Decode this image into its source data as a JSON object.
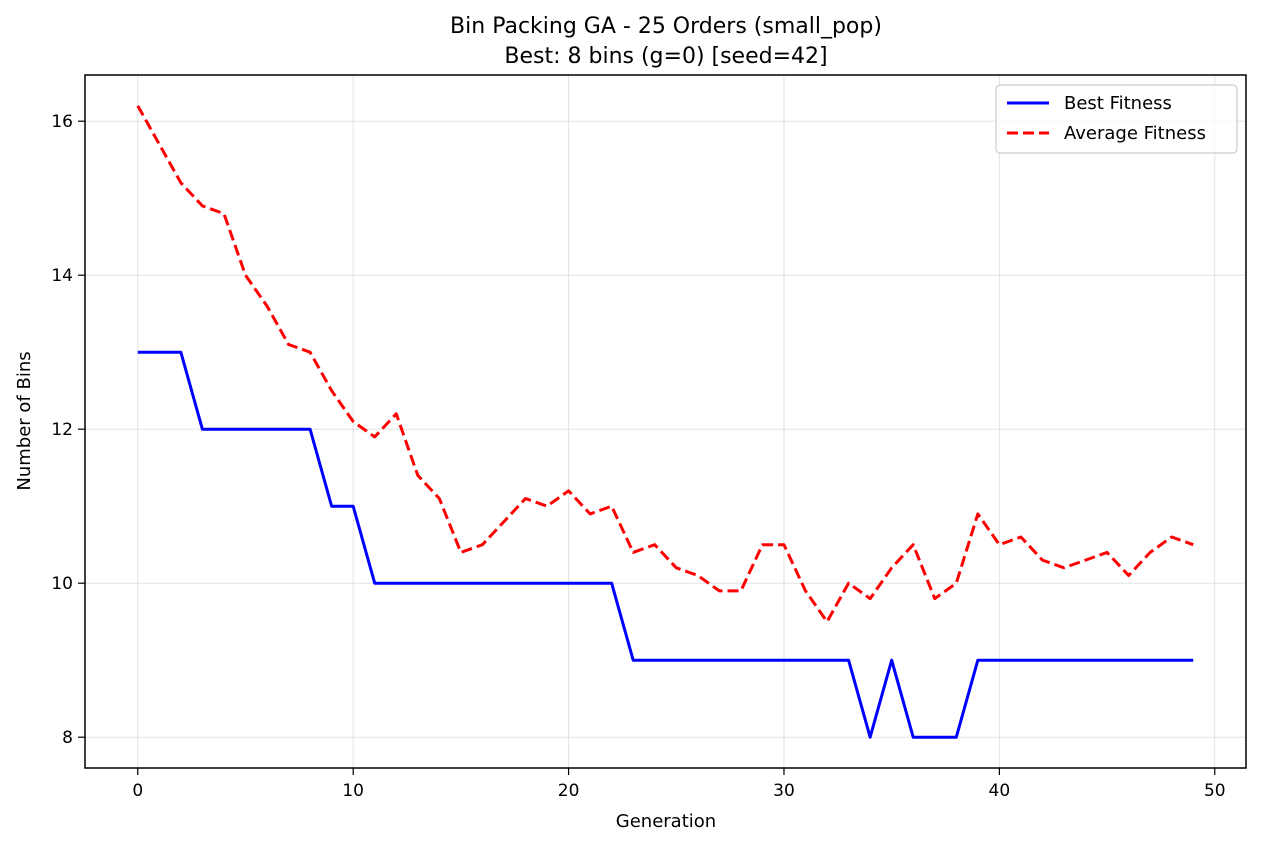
{
  "chart_data": {
    "type": "line",
    "title": "Bin Packing GA - 25 Orders (small_pop)",
    "subtitle": "Best: 8 bins (g=0) [seed=42]",
    "xlabel": "Generation",
    "ylabel": "Number of Bins",
    "xlim": [
      -2.45,
      51.45
    ],
    "ylim": [
      7.6,
      16.6
    ],
    "xticks": [
      0,
      10,
      20,
      30,
      40,
      50
    ],
    "yticks": [
      8,
      10,
      12,
      14,
      16
    ],
    "grid": true,
    "legend_position": "top-right",
    "x": [
      0,
      1,
      2,
      3,
      4,
      5,
      6,
      7,
      8,
      9,
      10,
      11,
      12,
      13,
      14,
      15,
      16,
      17,
      18,
      19,
      20,
      21,
      22,
      23,
      24,
      25,
      26,
      27,
      28,
      29,
      30,
      31,
      32,
      33,
      34,
      35,
      36,
      37,
      38,
      39,
      40,
      41,
      42,
      43,
      44,
      45,
      46,
      47,
      48,
      49
    ],
    "series": [
      {
        "name": "Best Fitness",
        "color": "#0000ff",
        "style": "solid",
        "values": [
          13,
          13,
          13,
          12,
          12,
          12,
          12,
          12,
          12,
          11,
          11,
          10,
          10,
          10,
          10,
          10,
          10,
          10,
          10,
          10,
          10,
          10,
          10,
          9,
          9,
          9,
          9,
          9,
          9,
          9,
          9,
          9,
          9,
          9,
          8,
          9,
          8,
          8,
          8,
          9,
          9,
          9,
          9,
          9,
          9,
          9,
          9,
          9,
          9,
          9
        ]
      },
      {
        "name": "Average Fitness",
        "color": "#ff0000",
        "style": "dashed",
        "values": [
          16.2,
          15.7,
          15.2,
          14.9,
          14.8,
          14.0,
          13.6,
          13.1,
          13.0,
          12.5,
          12.1,
          11.9,
          12.2,
          11.4,
          11.1,
          10.4,
          10.5,
          10.8,
          11.1,
          11.0,
          11.2,
          10.9,
          11.0,
          10.4,
          10.5,
          10.2,
          10.1,
          9.9,
          9.9,
          10.5,
          10.5,
          9.9,
          9.5,
          10.0,
          9.8,
          10.2,
          10.5,
          9.8,
          10.0,
          10.9,
          10.5,
          10.6,
          10.3,
          10.2,
          10.3,
          10.4,
          10.1,
          10.4,
          10.6,
          10.5
        ]
      }
    ]
  }
}
